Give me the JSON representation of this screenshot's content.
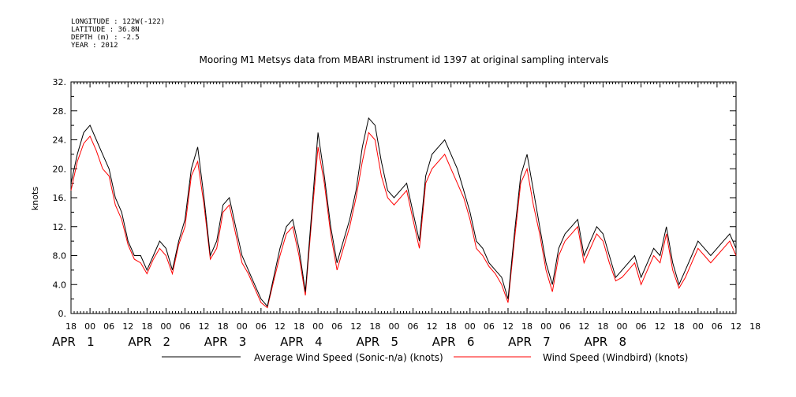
{
  "meta": {
    "longitude": "LONGITUDE : 122W(-122)",
    "latitude": "LATITUDE : 36.8N",
    "depth": "DEPTH (m) : -2.5",
    "year": "YEAR : 2012"
  },
  "chart_data": {
    "type": "line",
    "title": "Mooring M1 Metsys data from MBARI instrument id 1397 at original sampling intervals",
    "ylabel": "knots",
    "xlabel": "",
    "ylim": [
      0,
      32
    ],
    "yticks": [
      "0.",
      "4.0",
      "8.0",
      "12.",
      "16.",
      "20.",
      "24.",
      "28.",
      "32."
    ],
    "xlim_hours": [
      -6,
      204
    ],
    "x_ticks": [
      "18",
      "00",
      "06",
      "12",
      "18",
      "00",
      "06",
      "12",
      "18",
      "00",
      "06",
      "12",
      "18",
      "00",
      "06",
      "12",
      "18",
      "00",
      "06",
      "12",
      "18",
      "00",
      "06",
      "12",
      "18",
      "00",
      "06",
      "12",
      "18",
      "00",
      "06",
      "12",
      "18",
      "00",
      "06",
      "12",
      "18"
    ],
    "x_date_labels": [
      {
        "text": "APR   1",
        "hour": 0
      },
      {
        "text": "APR   2",
        "hour": 24
      },
      {
        "text": "APR   3",
        "hour": 48
      },
      {
        "text": "APR   4",
        "hour": 72
      },
      {
        "text": "APR   5",
        "hour": 96
      },
      {
        "text": "APR   6",
        "hour": 120
      },
      {
        "text": "APR   7",
        "hour": 144
      },
      {
        "text": "APR   8",
        "hour": 168
      }
    ],
    "grid": false,
    "legend_position": "bottom",
    "x_unit": "hours from 2012-04-01 00:00",
    "series": [
      {
        "name": "Average Wind Speed (Sonic-n/a) (knots)",
        "color": "#000000",
        "x": [
          -6,
          -4,
          -2,
          0,
          2,
          4,
          6,
          8,
          10,
          12,
          14,
          16,
          18,
          20,
          22,
          24,
          26,
          28,
          30,
          32,
          34,
          36,
          38,
          40,
          42,
          44,
          46,
          48,
          50,
          52,
          54,
          56,
          58,
          60,
          62,
          64,
          66,
          68,
          70,
          72,
          74,
          76,
          78,
          80,
          82,
          84,
          86,
          88,
          90,
          92,
          94,
          96,
          98,
          100,
          102,
          104,
          106,
          108,
          110,
          112,
          114,
          116,
          118,
          120,
          122,
          124,
          126,
          128,
          130,
          132,
          134,
          136,
          138,
          140,
          142,
          144,
          146,
          148,
          150,
          152,
          154,
          156,
          158,
          160,
          162,
          164,
          166,
          168,
          170,
          172,
          174,
          176,
          178,
          180,
          182,
          184,
          186,
          188,
          190,
          192,
          194,
          196,
          198,
          200,
          202,
          204
        ],
        "y": [
          18,
          22,
          25,
          26,
          24,
          22,
          20,
          16,
          14,
          10,
          8,
          8,
          6,
          8,
          10,
          9,
          6,
          10,
          13,
          20,
          23,
          16,
          8,
          10,
          15,
          16,
          12,
          8,
          6,
          4,
          2,
          1,
          5,
          9,
          12,
          13,
          9,
          3,
          14,
          25,
          19,
          12,
          7,
          10,
          13,
          17,
          23,
          27,
          26,
          21,
          17,
          16,
          17,
          18,
          14,
          10,
          19,
          22,
          23,
          24,
          22,
          20,
          17,
          14,
          10,
          9,
          7,
          6,
          5,
          2,
          11,
          19,
          22,
          17,
          12,
          7,
          4,
          9,
          11,
          12,
          13,
          8,
          10,
          12,
          11,
          8,
          5,
          6,
          7,
          8,
          5,
          7,
          9,
          8,
          12,
          7,
          4,
          6,
          8,
          10,
          9,
          8,
          9,
          10,
          11,
          9
        ]
      },
      {
        "name": "Wind Speed (Windbird) (knots)",
        "color": "#ff0000",
        "x": [
          -6,
          -4,
          -2,
          0,
          2,
          4,
          6,
          8,
          10,
          12,
          14,
          16,
          18,
          20,
          22,
          24,
          26,
          28,
          30,
          32,
          34,
          36,
          38,
          40,
          42,
          44,
          46,
          48,
          50,
          52,
          54,
          56,
          58,
          60,
          62,
          64,
          66,
          68,
          70,
          72,
          74,
          76,
          78,
          80,
          82,
          84,
          86,
          88,
          90,
          92,
          94,
          96,
          98,
          100,
          102,
          104,
          106,
          108,
          110,
          112,
          114,
          116,
          118,
          120,
          122,
          124,
          126,
          128,
          130,
          132,
          134,
          136,
          138,
          140,
          142,
          144,
          146,
          148,
          150,
          152,
          154,
          156,
          158,
          160,
          162,
          164,
          166,
          168,
          170,
          172,
          174,
          176,
          178,
          180,
          182,
          184,
          186,
          188,
          190,
          192,
          194,
          196,
          198,
          200,
          202,
          204
        ],
        "y": [
          17,
          21,
          23.5,
          24.5,
          22.5,
          20,
          19,
          15,
          13,
          9.5,
          7.5,
          7,
          5.5,
          7.5,
          9,
          8,
          5.5,
          9.5,
          12,
          19,
          21,
          15,
          7.5,
          9,
          14,
          15,
          11,
          7,
          5.5,
          3.5,
          1.5,
          0.8,
          4.5,
          8,
          11,
          12,
          8,
          2.5,
          13,
          23,
          18,
          11,
          6,
          9,
          12,
          16,
          21,
          25,
          24,
          19,
          16,
          15,
          16,
          17,
          13,
          9,
          18,
          20,
          21,
          22,
          20,
          18,
          16,
          13,
          9,
          8,
          6.5,
          5.5,
          4,
          1.5,
          10,
          18,
          20,
          15,
          11,
          6,
          3,
          8,
          10,
          11,
          12,
          7,
          9,
          11,
          10,
          7,
          4.5,
          5,
          6,
          7,
          4,
          6,
          8,
          7,
          11,
          6,
          3.5,
          5,
          7,
          9,
          8,
          7,
          8,
          9,
          10,
          8
        ]
      }
    ]
  }
}
